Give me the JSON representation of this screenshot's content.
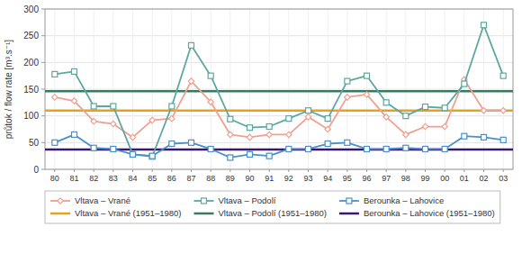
{
  "chart_data": {
    "type": "line",
    "ylabel": "průtok / flow rate [m³.s⁻¹]",
    "categories": [
      "80",
      "81",
      "82",
      "83",
      "84",
      "85",
      "86",
      "87",
      "88",
      "89",
      "90",
      "91",
      "92",
      "93",
      "94",
      "95",
      "96",
      "97",
      "98",
      "99",
      "00",
      "01",
      "02",
      "03"
    ],
    "series": [
      {
        "name": "Vltava – Vrané",
        "color": "#f0a090",
        "marker": "diamond",
        "values": [
          135,
          128,
          90,
          85,
          60,
          92,
          95,
          165,
          126,
          65,
          60,
          65,
          65,
          98,
          75,
          135,
          140,
          98,
          65,
          80,
          80,
          168,
          110,
          110
        ]
      },
      {
        "name": "Vltava – Podolí",
        "color": "#5ba8a0",
        "marker": "square",
        "values": [
          178,
          183,
          118,
          118,
          28,
          24,
          118,
          232,
          175,
          94,
          78,
          80,
          95,
          110,
          95,
          165,
          175,
          125,
          100,
          117,
          115,
          160,
          270,
          175
        ]
      },
      {
        "name": "Berounka – Lahovice",
        "color": "#4a90c8",
        "marker": "square",
        "values": [
          50,
          65,
          40,
          38,
          28,
          25,
          48,
          50,
          38,
          22,
          28,
          25,
          38,
          38,
          48,
          50,
          38,
          38,
          40,
          38,
          38,
          62,
          60,
          55
        ]
      },
      {
        "name": "Vltava – Vrané (1951–1980)",
        "color": "#e8a020",
        "type": "hline",
        "value": 110
      },
      {
        "name": "Vltava – Podolí (1951–1980)",
        "color": "#3a7860",
        "type": "hline",
        "value": 146
      },
      {
        "name": "Berounka – Lahovice (1951–1980)",
        "color": "#3a1870",
        "type": "hline",
        "value": 37
      }
    ],
    "ylim": [
      0,
      300
    ],
    "yticks": [
      0,
      50,
      100,
      150,
      200,
      250,
      300
    ],
    "grid": true,
    "legend": "bottom"
  }
}
